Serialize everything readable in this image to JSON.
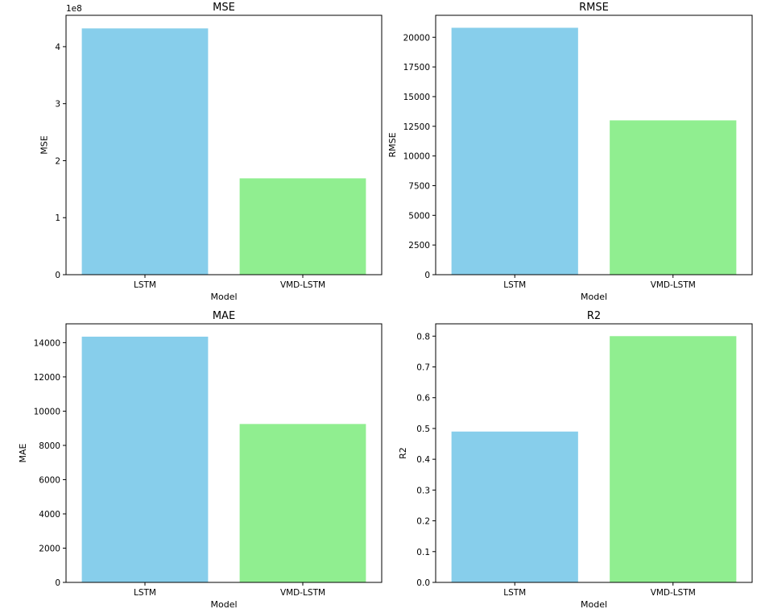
{
  "colors": {
    "series": [
      "#87CEEB",
      "#90EE90"
    ],
    "axis": "#000000"
  },
  "chart_data": [
    {
      "type": "bar",
      "title": "MSE",
      "xlabel": "Model",
      "ylabel": "MSE",
      "categories": [
        "LSTM",
        "VMD-LSTM"
      ],
      "values": [
        432000000,
        169000000
      ],
      "ylim": [
        0,
        455000000
      ],
      "yticks": [
        0,
        100000000,
        200000000,
        300000000,
        400000000
      ],
      "ytick_labels": [
        "0",
        "1",
        "2",
        "3",
        "4"
      ],
      "offset_label": "1e8"
    },
    {
      "type": "bar",
      "title": "RMSE",
      "xlabel": "Model",
      "ylabel": "RMSE",
      "categories": [
        "LSTM",
        "VMD-LSTM"
      ],
      "values": [
        20800,
        13000
      ],
      "ylim": [
        0,
        21850
      ],
      "yticks": [
        0,
        2500,
        5000,
        7500,
        10000,
        12500,
        15000,
        17500,
        20000
      ],
      "ytick_labels": [
        "0",
        "2500",
        "5000",
        "7500",
        "10000",
        "12500",
        "15000",
        "17500",
        "20000"
      ]
    },
    {
      "type": "bar",
      "title": "MAE",
      "xlabel": "Model",
      "ylabel": "MAE",
      "categories": [
        "LSTM",
        "VMD-LSTM"
      ],
      "values": [
        14350,
        9250
      ],
      "ylim": [
        0,
        15100
      ],
      "yticks": [
        0,
        2000,
        4000,
        6000,
        8000,
        10000,
        12000,
        14000
      ],
      "ytick_labels": [
        "0",
        "2000",
        "4000",
        "6000",
        "8000",
        "10000",
        "12000",
        "14000"
      ]
    },
    {
      "type": "bar",
      "title": "R2",
      "xlabel": "Model",
      "ylabel": "R2",
      "categories": [
        "LSTM",
        "VMD-LSTM"
      ],
      "values": [
        0.49,
        0.8
      ],
      "ylim": [
        0,
        0.84
      ],
      "yticks": [
        0,
        0.1,
        0.2,
        0.3,
        0.4,
        0.5,
        0.6,
        0.7,
        0.8
      ],
      "ytick_labels": [
        "0.0",
        "0.1",
        "0.2",
        "0.3",
        "0.4",
        "0.5",
        "0.6",
        "0.7",
        "0.8"
      ]
    }
  ]
}
